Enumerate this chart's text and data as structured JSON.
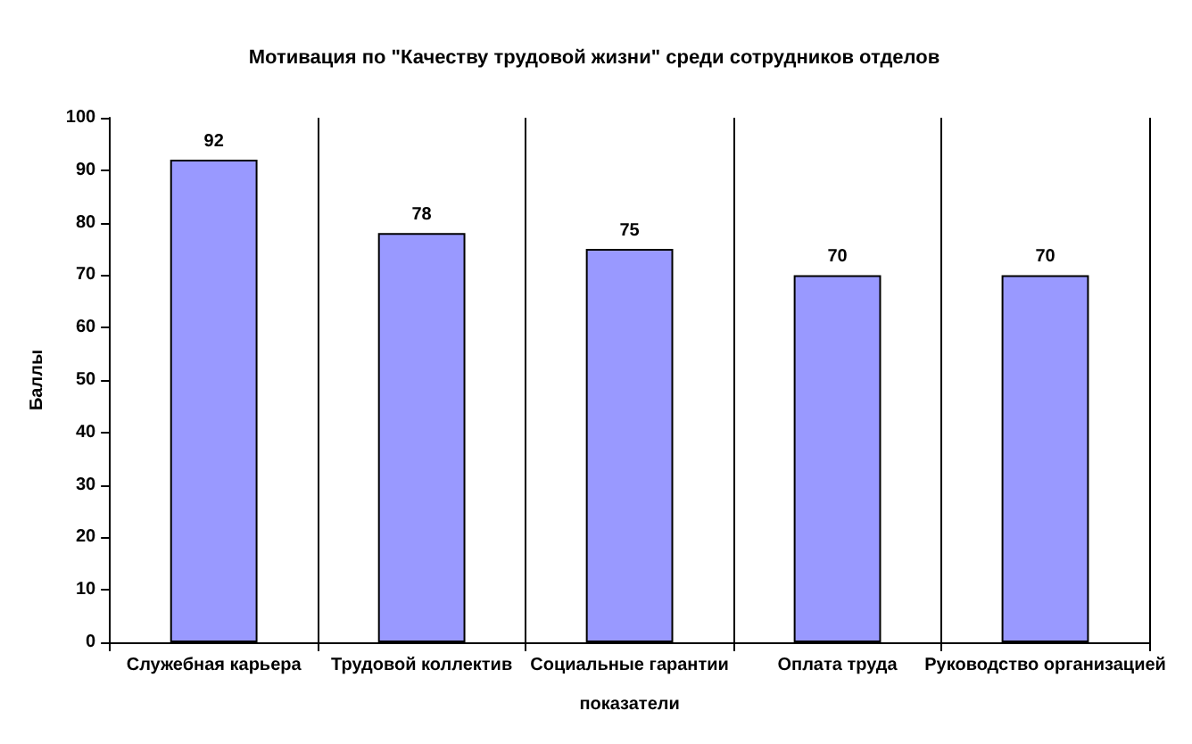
{
  "chart_data": {
    "type": "bar",
    "title": "Мотивация по \"Качеству трудовой жизни\" среди сотрудников отделов",
    "xlabel": "показатели",
    "ylabel": "Баллы",
    "categories": [
      "Служебная карьера",
      "Трудовой коллектив",
      "Социальные гарантии",
      "Оплата труда",
      "Руководство организацией"
    ],
    "values": [
      92,
      78,
      75,
      70,
      70
    ],
    "color": "#9999ff",
    "data_labels": true,
    "grid": "x",
    "ylim": [
      0,
      100
    ],
    "yticks": [
      0,
      10,
      20,
      30,
      40,
      50,
      60,
      70,
      80,
      90,
      100
    ]
  }
}
